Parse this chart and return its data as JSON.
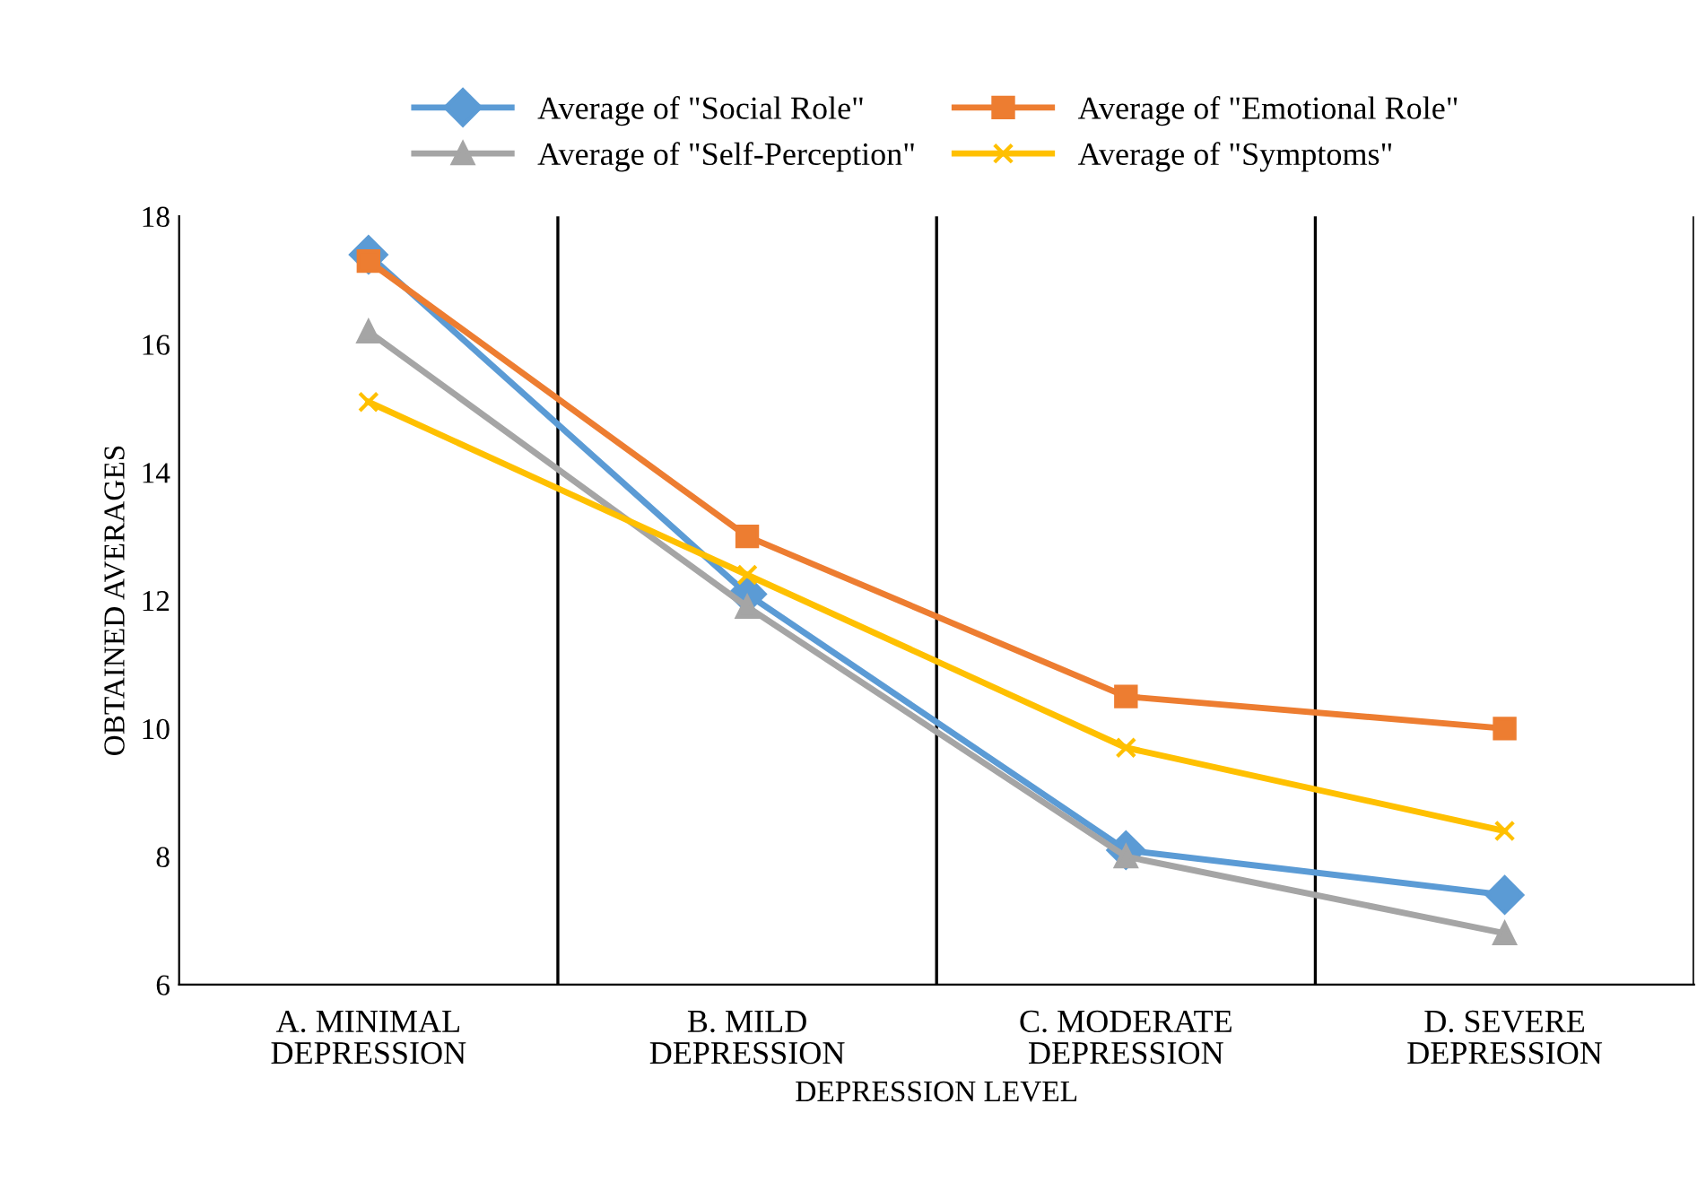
{
  "chart_data": {
    "type": "line",
    "xlabel": "DEPRESSION LEVEL",
    "ylabel": "OBTAINED AVERAGES",
    "categories": [
      "A. MINIMAL\nDEPRESSION",
      "B. MILD\nDEPRESSION",
      "C. MODERATE\nDEPRESSION",
      "D. SEVERE\nDEPRESSION"
    ],
    "series": [
      {
        "name": "Average of \"Social Role\"",
        "color": "#5b9bd5",
        "marker": "diamond",
        "values": [
          17.4,
          12.1,
          8.1,
          7.4
        ]
      },
      {
        "name": "Average of \"Emotional Role\"",
        "color": "#ed7d31",
        "marker": "square",
        "values": [
          17.3,
          13.0,
          10.5,
          10.0
        ]
      },
      {
        "name": "Average of \"Self-Perception\"",
        "color": "#a5a5a5",
        "marker": "triangle",
        "values": [
          16.2,
          11.9,
          8.0,
          6.8
        ]
      },
      {
        "name": "Average of \"Symptoms\"",
        "color": "#ffc000",
        "marker": "cross",
        "values": [
          15.1,
          12.4,
          9.7,
          8.4
        ]
      }
    ],
    "ylim": [
      6,
      18
    ],
    "yticks": [
      6,
      8,
      10,
      12,
      14,
      16,
      18
    ],
    "grid": "x",
    "legend": "top"
  }
}
